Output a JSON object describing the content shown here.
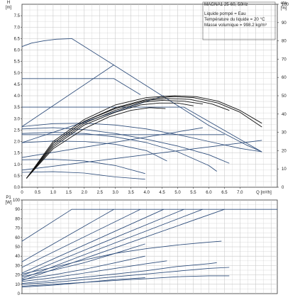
{
  "header": {
    "title": "MAGNA1 25-60, 50Hz",
    "lines": [
      "Liquide pompé = Eau",
      "Température du liquide = 20 °C",
      "Masse volumique = 998.2 kg/m³"
    ]
  },
  "colors": {
    "curve": "#2e4d7b",
    "efficiency": "#111111",
    "grid": "#c6c6c6",
    "axis": "#333333"
  },
  "chart_data": [
    {
      "type": "line",
      "name": "head",
      "xlabel": "Q [m³/h]",
      "ylabel": "H\n[m]",
      "y2label": "eta\n[%]",
      "xlim": [
        0,
        8.2
      ],
      "ylim": [
        0,
        8.0
      ],
      "y2lim": [
        0,
        100
      ],
      "x_ticks": [
        "0",
        "0.5",
        "1.0",
        "1.5",
        "2.0",
        "2.5",
        "3.0",
        "3.5",
        "4.0",
        "4.5",
        "5.0",
        "5.5",
        "6.0",
        "6.5",
        "7.0"
      ],
      "y_ticks": [
        "0.0",
        "0.5",
        "1.0",
        "1.5",
        "2.0",
        "2.5",
        "3.0",
        "3.5",
        "4.0",
        "4.5",
        "5.0",
        "5.5",
        "6.0",
        "6.5",
        "7.0",
        "7.5"
      ],
      "y2_ticks": [
        "0",
        "10",
        "20",
        "30",
        "40",
        "50",
        "60",
        "70",
        "80",
        "90",
        "100"
      ],
      "grid": true,
      "series": [
        {
          "kind": "head",
          "x": [
            0,
            0.3,
            0.7,
            1.1,
            1.6
          ],
          "y": [
            6.15,
            6.3,
            6.4,
            6.47,
            6.5
          ]
        },
        {
          "kind": "head",
          "x": [
            1.6,
            3.0,
            4.5,
            6.0,
            7.2,
            7.7
          ],
          "y": [
            6.5,
            5.3,
            4.0,
            2.7,
            1.85,
            1.55
          ]
        },
        {
          "kind": "head",
          "x": [
            0,
            2.95
          ],
          "y": [
            4.75,
            4.75
          ]
        },
        {
          "kind": "head",
          "x": [
            2.95,
            3.8
          ],
          "y": [
            4.75,
            4.05
          ]
        },
        {
          "kind": "head",
          "x": [
            0,
            5.2
          ],
          "y": [
            3.5,
            3.5
          ]
        },
        {
          "kind": "head",
          "x": [
            5.2,
            7.7
          ],
          "y": [
            3.5,
            1.55
          ]
        },
        {
          "kind": "head",
          "x": [
            0,
            6.5
          ],
          "y": [
            2.3,
            2.3
          ]
        },
        {
          "kind": "head",
          "x": [
            0,
            2.95
          ],
          "y": [
            2.65,
            5.35
          ]
        },
        {
          "kind": "head",
          "x": [
            0,
            4.55
          ],
          "y": [
            1.95,
            4.0
          ]
        },
        {
          "kind": "head",
          "x": [
            0,
            5.8
          ],
          "y": [
            1.3,
            2.6
          ]
        },
        {
          "kind": "head",
          "x": [
            0,
            7.7
          ],
          "y": [
            0.75,
            2.05
          ]
        },
        {
          "kind": "head",
          "x": [
            0,
            1.0,
            2.0,
            3.0,
            4.0,
            5.0,
            6.0,
            7.0,
            7.7
          ],
          "y": [
            2.65,
            2.78,
            2.8,
            2.72,
            2.55,
            2.3,
            2.0,
            1.7,
            1.55
          ]
        },
        {
          "kind": "head",
          "x": [
            0,
            1.0,
            2.0,
            3.0,
            4.0,
            5.0,
            6.0,
            6.65
          ],
          "y": [
            2.55,
            2.6,
            2.52,
            2.35,
            2.1,
            1.8,
            1.42,
            1.05
          ]
        },
        {
          "kind": "head",
          "x": [
            0,
            1.0,
            2.0,
            3.0,
            4.0,
            5.0,
            6.0,
            6.25
          ],
          "y": [
            2.35,
            2.4,
            2.35,
            2.2,
            1.95,
            1.55,
            0.95,
            0.7
          ]
        },
        {
          "kind": "head",
          "x": [
            0,
            1.0,
            2.0,
            3.0,
            4.0,
            4.65
          ],
          "y": [
            1.95,
            2.02,
            2.0,
            1.88,
            1.6,
            1.15
          ]
        },
        {
          "kind": "head",
          "x": [
            0,
            1.0,
            2.0,
            3.0,
            3.95
          ],
          "y": [
            1.2,
            1.22,
            1.15,
            0.95,
            0.6
          ]
        },
        {
          "kind": "head",
          "x": [
            0,
            1.0,
            2.0,
            3.0,
            3.95
          ],
          "y": [
            0.65,
            0.68,
            0.62,
            0.45,
            0.35
          ]
        },
        {
          "kind": "eta",
          "x": [
            0.15,
            1.0,
            2.0,
            3.0,
            4.0,
            4.9,
            5.6,
            6.3,
            7.0,
            7.7
          ],
          "y": [
            5,
            25,
            37,
            45,
            49,
            50,
            49.5,
            47,
            42,
            35
          ]
        },
        {
          "kind": "eta",
          "x": [
            0.15,
            1.0,
            2.0,
            3.0,
            4.0,
            4.8,
            5.5,
            6.3,
            7.0,
            7.7
          ],
          "y": [
            5,
            24,
            36,
            43.5,
            48,
            49.5,
            49,
            46,
            41,
            33
          ]
        },
        {
          "kind": "eta",
          "x": [
            0.15,
            1.0,
            2.0,
            3.0,
            4.0,
            4.7,
            5.4,
            6.1,
            6.65
          ],
          "y": [
            5,
            24,
            36,
            43,
            47.5,
            48.5,
            48,
            45.5,
            42
          ]
        },
        {
          "kind": "eta",
          "x": [
            0.15,
            1.0,
            2.0,
            3.0,
            3.9,
            4.5,
            5.2,
            5.8
          ],
          "y": [
            5,
            23,
            35,
            42,
            46.5,
            47.5,
            47,
            45.5
          ]
        },
        {
          "kind": "eta",
          "x": [
            0.15,
            1.0,
            2.0,
            3.0,
            3.8,
            4.4,
            5.0,
            5.5
          ],
          "y": [
            5,
            22,
            34,
            41,
            45,
            46,
            46,
            44.5
          ]
        },
        {
          "kind": "eta",
          "x": [
            0.15,
            1.0,
            2.0,
            2.8,
            3.5,
            4.1,
            4.6
          ],
          "y": [
            5,
            21,
            32,
            38.5,
            42,
            43.5,
            43
          ]
        }
      ]
    },
    {
      "type": "line",
      "name": "power",
      "xlabel": "",
      "ylabel": "P1\n[W]",
      "xlim": [
        0,
        8.2
      ],
      "ylim": [
        0,
        100
      ],
      "y_ticks": [
        "0",
        "10",
        "20",
        "30",
        "40",
        "50",
        "60",
        "70",
        "80",
        "90",
        "100"
      ],
      "grid": true,
      "series": [
        {
          "x": [
            0,
            1.6
          ],
          "y": [
            56,
            90
          ]
        },
        {
          "x": [
            1.6,
            8.2
          ],
          "y": [
            90,
            90
          ]
        },
        {
          "x": [
            0,
            2.95
          ],
          "y": [
            34,
            90
          ]
        },
        {
          "x": [
            0,
            3.8
          ],
          "y": [
            28,
            90
          ]
        },
        {
          "x": [
            0,
            4.55
          ],
          "y": [
            22,
            90
          ]
        },
        {
          "x": [
            0,
            5.2
          ],
          "y": [
            19,
            90
          ]
        },
        {
          "x": [
            0,
            5.8
          ],
          "y": [
            16,
            90
          ]
        },
        {
          "x": [
            0,
            6.5
          ],
          "y": [
            14,
            90
          ]
        },
        {
          "x": [
            0,
            1.0,
            2.0,
            3.0,
            3.95
          ],
          "y": [
            18,
            25,
            33,
            43,
            53
          ]
        },
        {
          "x": [
            0,
            1.0,
            2.0,
            3.0,
            3.95
          ],
          "y": [
            15,
            20,
            26,
            33,
            40
          ]
        },
        {
          "x": [
            0,
            1.0,
            2.0,
            3.0,
            4.0,
            4.65
          ],
          "y": [
            13,
            17,
            22,
            27,
            32,
            35
          ]
        },
        {
          "x": [
            0,
            1.0,
            2.0,
            3.0,
            4.0,
            5.0,
            6.0,
            6.25
          ],
          "y": [
            11,
            14,
            17.5,
            21,
            24.5,
            29,
            32,
            33
          ]
        },
        {
          "x": [
            0,
            1.0,
            2.0,
            3.0,
            4.0,
            5.0,
            6.0,
            6.65
          ],
          "y": [
            10,
            12,
            15,
            18,
            21,
            24,
            27,
            28
          ]
        },
        {
          "x": [
            0,
            1.0,
            2.0,
            3.0,
            4.0,
            5.0,
            6.0,
            6.65
          ],
          "y": [
            8,
            10,
            12,
            14,
            16,
            18,
            19,
            19
          ]
        },
        {
          "x": [
            0,
            1.0,
            2.0,
            3.0,
            4.0,
            5.0,
            6.0,
            6.4
          ],
          "y": [
            21,
            28,
            36,
            43,
            48,
            52,
            55,
            56
          ]
        },
        {
          "x": [
            0,
            1.0,
            2.0,
            3.0,
            3.95
          ],
          "y": [
            7,
            9,
            12,
            15,
            17
          ]
        }
      ]
    }
  ]
}
